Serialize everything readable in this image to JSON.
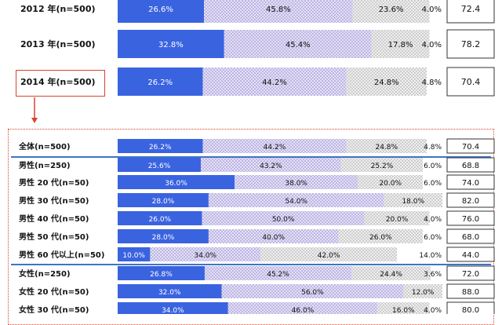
{
  "chart_data": {
    "type": "bar",
    "stacked": true,
    "orientation": "horizontal",
    "colors": {
      "seg1": "#3a63e0",
      "seg2": "#c9c3ea",
      "seg3": "#dcdcdc",
      "seg4": "#ffffff",
      "accent": "#d9432f",
      "separator": "#3e74c8"
    },
    "top": [
      {
        "label": "2012 年(n=500)",
        "values": [
          26.6,
          45.8,
          23.6,
          4.0
        ],
        "value_labels": [
          "26.6%",
          "45.8%",
          "23.6%",
          "4.0%"
        ],
        "score": "72.4"
      },
      {
        "label": "2013 年(n=500)",
        "values": [
          32.8,
          45.4,
          17.8,
          4.0
        ],
        "value_labels": [
          "32.8%",
          "45.4%",
          "17.8%",
          "4.0%"
        ],
        "score": "78.2"
      },
      {
        "label": "2014 年(n=500)",
        "values": [
          26.2,
          44.2,
          24.8,
          4.8
        ],
        "value_labels": [
          "26.2%",
          "44.2%",
          "24.8%",
          "4.8%"
        ],
        "score": "70.4"
      }
    ],
    "detail": [
      {
        "label": "全体(n=500)",
        "values": [
          26.2,
          44.2,
          24.8,
          4.8
        ],
        "value_labels": [
          "26.2%",
          "44.2%",
          "24.8%",
          "4.8%"
        ],
        "score": "70.4"
      },
      {
        "label": "男性(n=250)",
        "values": [
          25.6,
          43.2,
          25.2,
          6.0
        ],
        "value_labels": [
          "25.6%",
          "43.2%",
          "25.2%",
          "6.0%"
        ],
        "score": "68.8"
      },
      {
        "label": "男性 20 代(n=50)",
        "values": [
          36.0,
          38.0,
          20.0,
          6.0
        ],
        "value_labels": [
          "36.0%",
          "38.0%",
          "20.0%",
          "6.0%"
        ],
        "score": "74.0"
      },
      {
        "label": "男性 30 代(n=50)",
        "values": [
          28.0,
          54.0,
          18.0,
          0
        ],
        "value_labels": [
          "28.0%",
          "54.0%",
          "18.0%",
          ""
        ],
        "score": "82.0"
      },
      {
        "label": "男性 40 代(n=50)",
        "values": [
          26.0,
          50.0,
          20.0,
          4.0
        ],
        "value_labels": [
          "26.0%",
          "50.0%",
          "20.0%",
          "4.0%"
        ],
        "score": "76.0"
      },
      {
        "label": "男性 50 代(n=50)",
        "values": [
          28.0,
          40.0,
          26.0,
          6.0
        ],
        "value_labels": [
          "28.0%",
          "40.0%",
          "26.0%",
          "6.0%"
        ],
        "score": "68.0"
      },
      {
        "label": "男性 60 代以上(n=50)",
        "values": [
          10.0,
          34.0,
          42.0,
          14.0
        ],
        "value_labels": [
          "10.0%",
          "34.0%",
          "42.0%",
          "14.0%"
        ],
        "score": "44.0"
      },
      {
        "label": "女性(n=250)",
        "values": [
          26.8,
          45.2,
          24.4,
          3.6
        ],
        "value_labels": [
          "26.8%",
          "45.2%",
          "24.4%",
          "3.6%"
        ],
        "score": "72.0"
      },
      {
        "label": "女性 20 代(n=50)",
        "values": [
          32.0,
          56.0,
          12.0,
          0
        ],
        "value_labels": [
          "32.0%",
          "56.0%",
          "12.0%",
          ""
        ],
        "score": "88.0"
      },
      {
        "label": "女性 30 代(n=50)",
        "values": [
          34.0,
          46.0,
          16.0,
          4.0
        ],
        "value_labels": [
          "34.0%",
          "46.0%",
          "16.0%",
          "4.0%"
        ],
        "score": "80.0"
      }
    ]
  }
}
